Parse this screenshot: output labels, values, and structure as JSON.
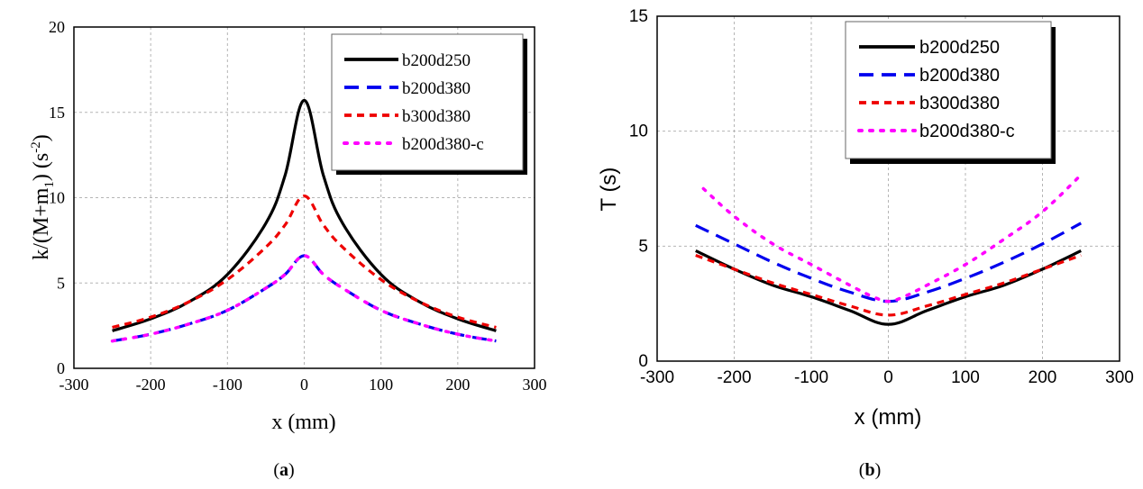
{
  "colors": {
    "b200d250": "#000000",
    "b200d380": "#0000ee",
    "b300d380": "#ee0000",
    "b200d380-c": "#ff00ff"
  },
  "chart_data": [
    {
      "type": "line",
      "panel_label": "(a)",
      "title": "",
      "xlabel": "x (mm)",
      "ylabel": "k/(M+m1)  (s-2)",
      "ylabel_parts": {
        "main": "k/(M+m",
        "sub": "1",
        "close": ")  (s",
        "sup": "-2",
        "end": ")"
      },
      "xlim": [
        -300,
        300
      ],
      "ylim": [
        0,
        20
      ],
      "xticks": [
        -300,
        -200,
        -100,
        0,
        100,
        200,
        300
      ],
      "yticks": [
        0,
        5,
        10,
        15,
        20
      ],
      "grid": true,
      "legend": "top-right",
      "series": [
        {
          "name": "b200d250",
          "x": [
            -250,
            -200,
            -150,
            -100,
            -50,
            -25,
            0,
            25,
            50,
            100,
            150,
            200,
            250
          ],
          "y": [
            2.2,
            2.9,
            3.9,
            5.5,
            8.5,
            11.3,
            15.7,
            11.3,
            8.5,
            5.5,
            3.9,
            2.9,
            2.2
          ]
        },
        {
          "name": "b200d380",
          "x": [
            -250,
            -200,
            -150,
            -100,
            -50,
            -25,
            0,
            25,
            50,
            100,
            150,
            200,
            250
          ],
          "y": [
            1.6,
            2.0,
            2.6,
            3.4,
            4.7,
            5.5,
            6.6,
            5.5,
            4.7,
            3.4,
            2.6,
            2.0,
            1.6
          ]
        },
        {
          "name": "b300d380",
          "x": [
            -250,
            -200,
            -150,
            -100,
            -50,
            -25,
            0,
            25,
            50,
            100,
            150,
            200,
            250
          ],
          "y": [
            2.4,
            3.0,
            3.9,
            5.2,
            7.1,
            8.4,
            10.1,
            8.4,
            7.1,
            5.2,
            3.9,
            3.0,
            2.4
          ]
        },
        {
          "name": "b200d380-c",
          "x": [
            -250,
            -200,
            -150,
            -100,
            -50,
            -25,
            0,
            25,
            50,
            100,
            150,
            200,
            250
          ],
          "y": [
            1.6,
            2.0,
            2.6,
            3.4,
            4.7,
            5.5,
            6.6,
            5.5,
            4.7,
            3.4,
            2.6,
            2.0,
            1.6
          ]
        }
      ]
    },
    {
      "type": "line",
      "panel_label": "(b)",
      "title": "",
      "xlabel": "x (mm)",
      "ylabel": "T (s)",
      "xlim": [
        -300,
        300
      ],
      "ylim": [
        0,
        15
      ],
      "xticks": [
        -300,
        -200,
        -100,
        0,
        100,
        200,
        300
      ],
      "yticks": [
        0,
        5,
        10,
        15
      ],
      "grid": true,
      "legend": "top-center",
      "series": [
        {
          "name": "b200d250",
          "x": [
            -250,
            -200,
            -150,
            -100,
            -50,
            0,
            50,
            100,
            150,
            200,
            250
          ],
          "y": [
            4.8,
            4.0,
            3.3,
            2.8,
            2.2,
            1.6,
            2.2,
            2.8,
            3.3,
            4.0,
            4.8
          ]
        },
        {
          "name": "b200d380",
          "x": [
            -250,
            -200,
            -150,
            -100,
            -50,
            0,
            50,
            100,
            150,
            200,
            250
          ],
          "y": [
            5.9,
            5.1,
            4.3,
            3.6,
            3.0,
            2.6,
            3.0,
            3.6,
            4.3,
            5.1,
            6.0
          ]
        },
        {
          "name": "b300d380",
          "x": [
            -250,
            -200,
            -150,
            -100,
            -50,
            0,
            50,
            100,
            150,
            200,
            250
          ],
          "y": [
            4.6,
            4.0,
            3.4,
            2.9,
            2.4,
            2.0,
            2.4,
            2.9,
            3.4,
            4.0,
            4.6
          ]
        },
        {
          "name": "b200d380-c",
          "x": [
            -240,
            -200,
            -150,
            -100,
            -50,
            -20,
            0,
            20,
            50,
            100,
            150,
            200,
            250
          ],
          "y": [
            7.5,
            6.3,
            5.1,
            4.2,
            3.3,
            2.8,
            2.6,
            2.8,
            3.3,
            4.2,
            5.3,
            6.5,
            8.1
          ]
        }
      ]
    }
  ]
}
